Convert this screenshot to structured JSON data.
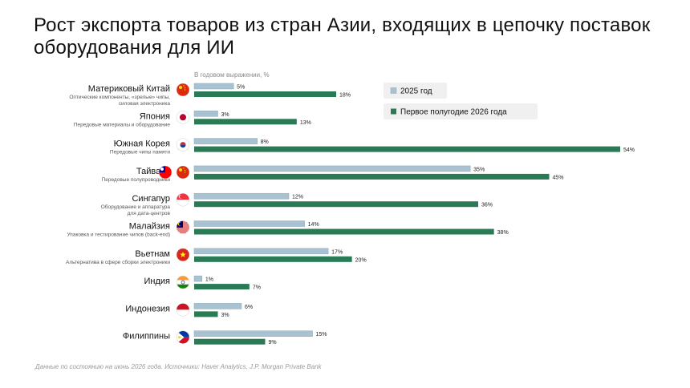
{
  "title": "Рост экспорта товаров из стран Азии, входящих в цепочку поставок оборудования для ИИ",
  "subtitle": "В годовом выражении, %",
  "footnote": "Данные по состоянию на июнь 2026 года. Источники: Haver Analytics, J.P. Morgan Private Bank",
  "colors": {
    "series_2025": "#a9c2d1",
    "series_2025_stroke": "#8aa7b8",
    "series_2026": "#2a7a55"
  },
  "chart_data": {
    "type": "bar",
    "orientation": "horizontal",
    "categories": [
      "Материковый Китай",
      "Япония",
      "Южная Корея",
      "Тайвань",
      "Сингапур",
      "Малайзия",
      "Вьетнам",
      "Индия",
      "Индонезия",
      "Филиппины"
    ],
    "descriptions": [
      [
        "Оптические компоненты, «зрелые» чипы,",
        "силовая электроника"
      ],
      [
        "Передовые материалы и оборудование"
      ],
      [
        "Передовые чипы памяти"
      ],
      [
        "Передовые полупроводники"
      ],
      [
        "Оборудование и аппаратура",
        "для дата-центров"
      ],
      [
        "Упаковка и тестирование чипов (back-end)"
      ],
      [
        "Альтернатива в сфере сборки электроники"
      ],
      [],
      [],
      []
    ],
    "flags": [
      [
        "china"
      ],
      [
        "japan"
      ],
      [
        "south-korea"
      ],
      [
        "taiwan",
        "china"
      ],
      [
        "singapore"
      ],
      [
        "malaysia"
      ],
      [
        "vietnam"
      ],
      [
        "india"
      ],
      [
        "indonesia"
      ],
      [
        "philippines"
      ]
    ],
    "series": [
      {
        "name": "2025 год",
        "values": [
          5,
          3,
          8,
          35,
          12,
          14,
          17,
          1,
          6,
          15
        ]
      },
      {
        "name": "Первое полугодие 2026 года",
        "values": [
          18,
          13,
          54,
          45,
          36,
          38,
          20,
          7,
          3,
          9
        ]
      }
    ],
    "value_labels": [
      [
        "5%",
        "3%",
        "8%",
        "35%",
        "12%",
        "14%",
        "17%",
        "1%",
        "6%",
        "15%"
      ],
      [
        "18%",
        "13%",
        "54%",
        "45%",
        "36%",
        "38%",
        "20%",
        "7%",
        "3%",
        "9%"
      ]
    ],
    "xlim": [
      0,
      54
    ],
    "legend": "top-right",
    "grid": false
  }
}
